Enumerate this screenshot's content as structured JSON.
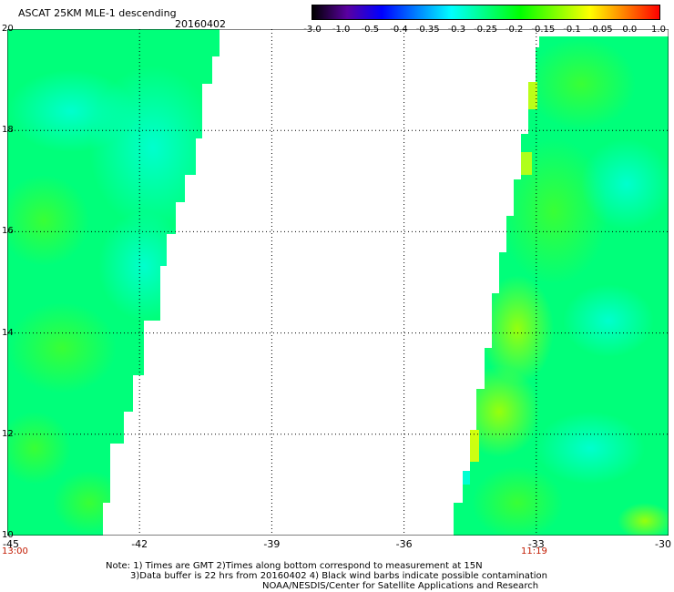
{
  "header": {
    "title": "ASCAT 25KM MLE-1 descending",
    "date": "20160402"
  },
  "colorbar": {
    "labels": [
      "-3.0",
      "-1.0",
      "-0.5",
      "-0.4",
      "-0.35",
      "-0.3",
      "-0.25",
      "-0.2",
      "-0.15",
      "-0.1",
      "-0.05",
      "0.0",
      "1.0"
    ],
    "colors": [
      "#000000",
      "#5a00a0",
      "#0000ff",
      "#0080ff",
      "#00ffff",
      "#00ff80",
      "#00ff00",
      "#80ff00",
      "#ffff00",
      "#ff8000",
      "#ff0000"
    ]
  },
  "map": {
    "lon_range": [
      -45,
      -30
    ],
    "lat_range": [
      10,
      20
    ],
    "x_ticks": [
      "-45",
      "-42",
      "-39",
      "-36",
      "-33",
      "-30"
    ],
    "y_ticks": [
      "20",
      "18",
      "16",
      "14",
      "12",
      "10"
    ],
    "swath_colors": {
      "base": "#00ff7a",
      "cyan": "#00ffd2",
      "green": "#3cff32",
      "lime": "#a8ff00",
      "yellow": "#f0ff00"
    }
  },
  "times": {
    "left": "13:00",
    "right": "11:19"
  },
  "notes": {
    "line1": "Note: 1) Times are GMT 2)Times along bottom correspond to measurement at 15N",
    "line2": "3)Data buffer is 22 hrs from 20160402 4) Black wind barbs indicate possible contamination",
    "line3": "NOAA/NESDIS/Center for Satellite Applications and Research"
  }
}
